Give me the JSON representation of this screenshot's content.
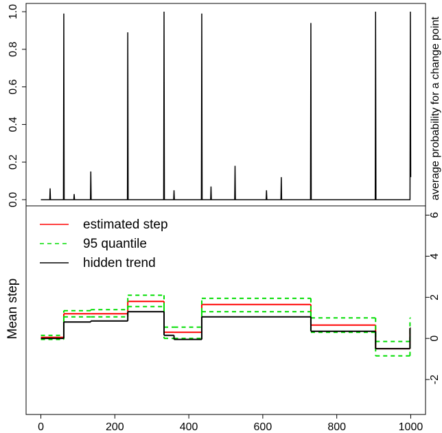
{
  "chart_data": [
    {
      "type": "line",
      "y2label": "average probability for a change point",
      "x": [
        0,
        24,
        25,
        26,
        61,
        62,
        63,
        89,
        90,
        91,
        134,
        135,
        136,
        234,
        235,
        236,
        332,
        333,
        334,
        359,
        360,
        361,
        434,
        435,
        436,
        459,
        460,
        461,
        524,
        525,
        526,
        609,
        610,
        611,
        649,
        650,
        651,
        729,
        730,
        731,
        904,
        905,
        906,
        998,
        999,
        1000
      ],
      "values": [
        0,
        0,
        0.06,
        0,
        0,
        0.99,
        0,
        0,
        0.03,
        0,
        0,
        0.15,
        0,
        0,
        0.89,
        0,
        0,
        1.0,
        0,
        0,
        0.05,
        0,
        0,
        0.99,
        0,
        0,
        0.07,
        0,
        0,
        0.18,
        0,
        0,
        0.05,
        0,
        0,
        0.12,
        0,
        0,
        0.94,
        0,
        0,
        1.0,
        0,
        0,
        1.0,
        0.12
      ],
      "color": "#000000",
      "xlim": [
        -40,
        1040
      ],
      "ylim": [
        -0.033,
        1.044
      ],
      "yticks": [
        {
          "value": 0,
          "label": "0.0"
        },
        0.2,
        0.4,
        0.6,
        0.8,
        {
          "value": 1,
          "label": "1.0"
        }
      ]
    },
    {
      "type": "step",
      "ylabel": "Mean step",
      "x": [
        0,
        62,
        135,
        235,
        333,
        360,
        435,
        730,
        905,
        998
      ],
      "x_end": 1000,
      "series": [
        {
          "name": "estimated step",
          "color": "#ff0000",
          "values": [
            0.05,
            1.2,
            1.2,
            1.8,
            0.3,
            0.3,
            1.65,
            0.65,
            -0.5,
            0.5
          ]
        },
        {
          "name": "95 quantile",
          "color": "#00dd00",
          "dashed": true,
          "values": [
            0.15,
            1.35,
            1.4,
            2.1,
            0.55,
            0.55,
            1.95,
            1.0,
            -0.15,
            1.0
          ],
          "lower": [
            -0.05,
            1.05,
            1.05,
            1.55,
            0.0,
            0.0,
            1.3,
            0.3,
            -0.85,
            0.1
          ]
        },
        {
          "name": "hidden trend",
          "color": "#000000",
          "values": [
            0,
            0.8,
            0.85,
            1.3,
            0.15,
            -0.05,
            1.05,
            0.35,
            -0.5,
            0.5
          ]
        }
      ],
      "xlim": [
        -40,
        1040
      ],
      "ylim": [
        -3.7,
        6.45
      ],
      "xticks": [
        0,
        200,
        400,
        600,
        800,
        1000
      ],
      "yticks": [
        -2,
        0,
        2,
        4,
        6
      ]
    }
  ]
}
